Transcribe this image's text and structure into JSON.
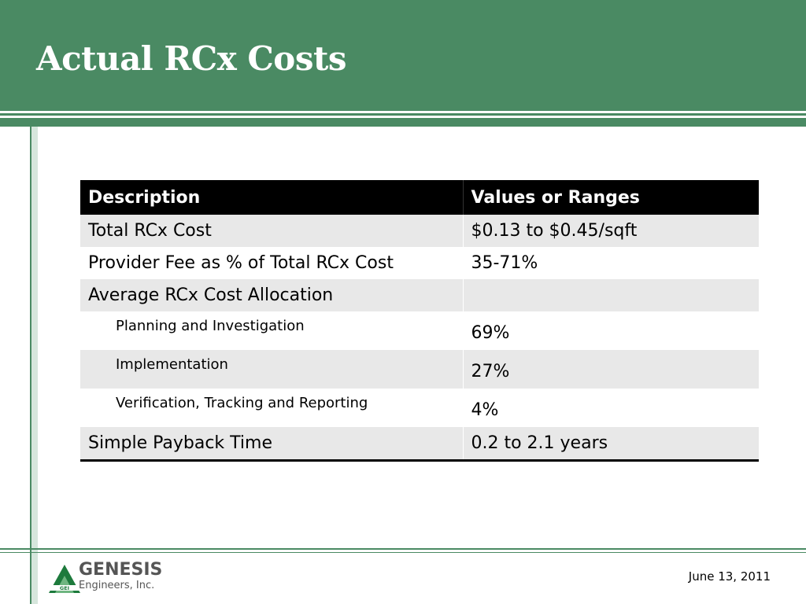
{
  "slide": {
    "title": "Actual RCx Costs",
    "date": "June 13, 2011"
  },
  "table": {
    "headers": [
      "Description",
      "Values or Ranges"
    ],
    "rows": [
      {
        "description": "Total RCx Cost",
        "value": "$0.13 to $0.45/sqft"
      },
      {
        "description": "Provider Fee as % of Total RCx Cost",
        "value": "35-71%"
      },
      {
        "description": "Average RCx Cost Allocation",
        "value": ""
      },
      {
        "description": "Planning and Investigation",
        "value": "69%"
      },
      {
        "description": "Implementation",
        "value": "27%"
      },
      {
        "description": "Verification, Tracking and Reporting",
        "value": "4%"
      },
      {
        "description": "Simple Payback Time",
        "value": "0.2 to 2.1 years"
      }
    ]
  },
  "logo": {
    "name": "GENESIS",
    "subtitle": "Engineers, Inc.",
    "mark_letters": "GEI",
    "colors": {
      "green": "#1d7a3c",
      "gray": "#555555"
    }
  },
  "colors": {
    "header_green": "#4a8a63",
    "table_header": "#000000",
    "row_shade": "#e8e8e8"
  }
}
